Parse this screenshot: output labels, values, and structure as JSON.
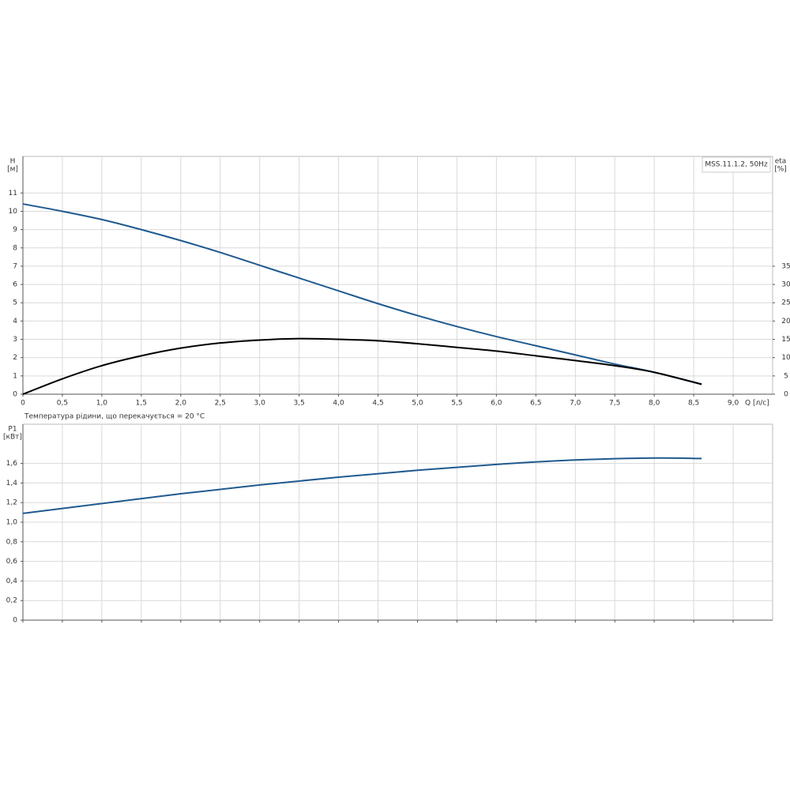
{
  "chart_data": [
    {
      "type": "line",
      "legend_text": "MSS.11.1.2, 50Hz",
      "xlabel": "Q [л/с]",
      "ylabel": "H",
      "yunit": "[м]",
      "y2label": "eta",
      "y2unit": "[%]",
      "x": [
        0,
        0.5,
        1.0,
        1.5,
        2.0,
        2.5,
        3.0,
        3.5,
        4.0,
        4.5,
        5.0,
        5.5,
        6.0,
        6.5,
        7.0,
        7.5,
        8.0,
        8.6
      ],
      "series": [
        {
          "color": "#1f5a8f",
          "values": [
            10.4,
            10.0,
            9.55,
            9.0,
            8.4,
            7.75,
            7.05,
            6.35,
            5.65,
            4.95,
            4.3,
            3.7,
            3.15,
            2.65,
            2.15,
            1.65,
            1.2,
            0.55
          ]
        },
        {
          "color": "#000000",
          "axis": "y2",
          "values": [
            0,
            4.2,
            7.8,
            10.5,
            12.6,
            14.0,
            14.8,
            15.2,
            15.0,
            14.6,
            13.8,
            12.8,
            11.8,
            10.5,
            9.2,
            7.8,
            6.0,
            2.7
          ]
        }
      ],
      "xlim": [
        0,
        9.5
      ],
      "xticks": [
        0,
        {
          "value": 0.5,
          "label": "0,5"
        },
        {
          "value": 1.0,
          "label": "1,0"
        },
        {
          "value": 1.5,
          "label": "1,5"
        },
        {
          "value": 2.0,
          "label": "2,0"
        },
        {
          "value": 2.5,
          "label": "2,5"
        },
        {
          "value": 3.0,
          "label": "3,0"
        },
        {
          "value": 3.5,
          "label": "3,5"
        },
        {
          "value": 4.0,
          "label": "4,0"
        },
        {
          "value": 4.5,
          "label": "4,5"
        },
        {
          "value": 5.0,
          "label": "5,0"
        },
        {
          "value": 5.5,
          "label": "5,5"
        },
        {
          "value": 6.0,
          "label": "6,0"
        },
        {
          "value": 6.5,
          "label": "6,5"
        },
        {
          "value": 7.0,
          "label": "7,0"
        },
        {
          "value": 7.5,
          "label": "7,5"
        },
        {
          "value": 8.0,
          "label": "8,0"
        },
        {
          "value": 8.5,
          "label": "8,5"
        },
        {
          "value": 9.0,
          "label": "9,0"
        }
      ],
      "ylim": [
        0,
        13
      ],
      "yticks": [
        0,
        1,
        2,
        3,
        4,
        5,
        6,
        7,
        8,
        9,
        10,
        11
      ],
      "y2lim": [
        0,
        65
      ],
      "y2ticks": [
        0,
        5,
        10,
        15,
        20,
        25,
        30,
        35
      ],
      "grid": true
    },
    {
      "type": "line",
      "title": "Температура рідини, що перекачується = 20 °C",
      "ylabel": "P1",
      "yunit": "[кВт]",
      "x": [
        0,
        1.0,
        2.0,
        3.0,
        4.0,
        5.0,
        6.0,
        7.0,
        8.0,
        8.6
      ],
      "series": [
        {
          "color": "#1f5a8f",
          "values": [
            1.09,
            1.19,
            1.29,
            1.38,
            1.46,
            1.53,
            1.59,
            1.635,
            1.655,
            1.65
          ]
        }
      ],
      "xlim": [
        0,
        9.5
      ],
      "xticks": [
        0,
        0.5,
        1.0,
        1.5,
        2.0,
        2.5,
        3.0,
        3.5,
        4.0,
        4.5,
        5.0,
        5.5,
        6.0,
        6.5,
        7.0,
        7.5,
        8.0,
        8.5,
        9.0
      ],
      "xtick_labels": false,
      "ylim": [
        0,
        2.0
      ],
      "yticks": [
        0,
        {
          "value": 0.2,
          "label": "0,2"
        },
        {
          "value": 0.4,
          "label": "0,4"
        },
        {
          "value": 0.6,
          "label": "0,6"
        },
        {
          "value": 0.8,
          "label": "0,8"
        },
        {
          "value": 1.0,
          "label": "1,0"
        },
        {
          "value": 1.2,
          "label": "1,2"
        },
        {
          "value": 1.4,
          "label": "1,4"
        },
        {
          "value": 1.6,
          "label": "1,6"
        }
      ],
      "grid": true
    }
  ]
}
